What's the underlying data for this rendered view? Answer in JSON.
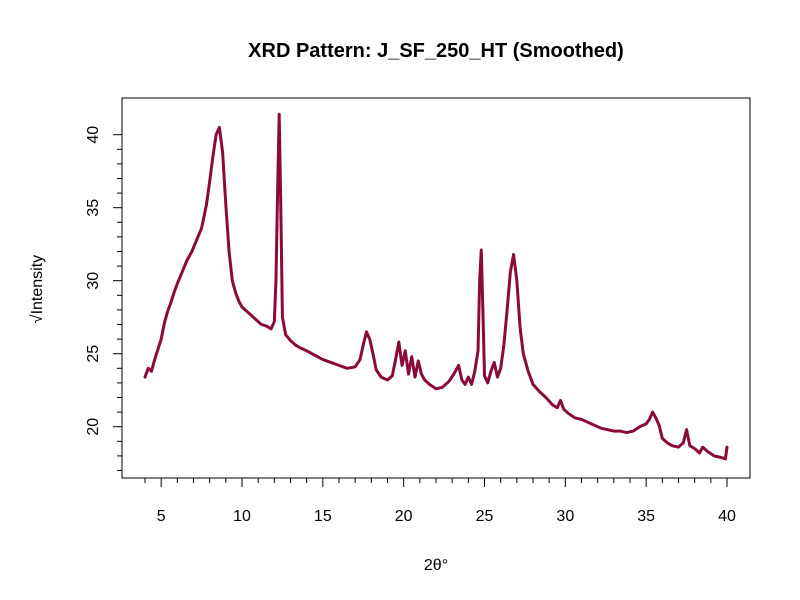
{
  "chart_data": {
    "type": "line",
    "title": "XRD Pattern: J_SF_250_HT (Smoothed)",
    "xlabel": "2θ°",
    "ylabel": "√Intensity",
    "xlim": [
      4,
      40
    ],
    "ylim": [
      17.4,
      41.6
    ],
    "x_ticks": [
      5,
      10,
      15,
      20,
      25,
      30,
      35,
      40
    ],
    "y_ticks": [
      20,
      25,
      30,
      35,
      40
    ],
    "x_tick_labels": [
      "5",
      "10",
      "15",
      "20",
      "25",
      "30",
      "35",
      "40"
    ],
    "y_tick_labels": [
      "20",
      "25",
      "30",
      "35",
      "40"
    ],
    "grid": false,
    "legend": "none",
    "line_color": "#8B0A3C",
    "series": [
      {
        "x": [
          4.0,
          4.2,
          4.4,
          4.6,
          4.8,
          5.0,
          5.2,
          5.4,
          5.6,
          5.8,
          6.0,
          6.3,
          6.6,
          6.9,
          7.2,
          7.5,
          7.8,
          8.0,
          8.2,
          8.4,
          8.6,
          8.8,
          9.0,
          9.2,
          9.4,
          9.6,
          9.8,
          10.0,
          10.3,
          10.6,
          10.9,
          11.2,
          11.5,
          11.8,
          12.0,
          12.1,
          12.2,
          12.3,
          12.4,
          12.5,
          12.7,
          13.0,
          13.3,
          13.6,
          14.0,
          14.5,
          15.0,
          15.5,
          16.0,
          16.5,
          17.0,
          17.3,
          17.5,
          17.7,
          17.9,
          18.1,
          18.3,
          18.6,
          19.0,
          19.3,
          19.5,
          19.7,
          19.9,
          20.1,
          20.3,
          20.5,
          20.7,
          20.9,
          21.1,
          21.3,
          21.6,
          22.0,
          22.4,
          22.8,
          23.1,
          23.4,
          23.6,
          23.8,
          24.0,
          24.2,
          24.4,
          24.6,
          24.7,
          24.8,
          24.9,
          25.0,
          25.2,
          25.4,
          25.6,
          25.8,
          26.0,
          26.2,
          26.4,
          26.6,
          26.8,
          27.0,
          27.2,
          27.4,
          27.7,
          28.0,
          28.4,
          28.8,
          29.2,
          29.5,
          29.7,
          29.9,
          30.2,
          30.6,
          31.0,
          31.4,
          31.8,
          32.2,
          32.6,
          33.0,
          33.4,
          33.8,
          34.2,
          34.6,
          35.0,
          35.2,
          35.4,
          35.6,
          35.8,
          36.0,
          36.3,
          36.6,
          37.0,
          37.3,
          37.5,
          37.7,
          38.0,
          38.3,
          38.5,
          38.8,
          39.2,
          39.6,
          39.9,
          40.0
        ],
        "y": [
          23.4,
          24.0,
          23.8,
          24.6,
          25.3,
          26.0,
          27.1,
          27.9,
          28.5,
          29.2,
          29.8,
          30.6,
          31.4,
          32.0,
          32.8,
          33.6,
          35.2,
          36.8,
          38.5,
          40.0,
          40.5,
          38.8,
          35.2,
          32.0,
          30.0,
          29.2,
          28.6,
          28.2,
          27.9,
          27.6,
          27.3,
          27.0,
          26.9,
          26.7,
          27.2,
          30.0,
          36.0,
          41.4,
          35.0,
          27.5,
          26.3,
          25.9,
          25.6,
          25.4,
          25.2,
          24.9,
          24.6,
          24.4,
          24.2,
          24.0,
          24.1,
          24.6,
          25.6,
          26.5,
          26.0,
          25.0,
          23.9,
          23.4,
          23.2,
          23.5,
          24.6,
          25.8,
          24.2,
          25.2,
          23.6,
          24.8,
          23.4,
          24.5,
          23.6,
          23.2,
          22.9,
          22.6,
          22.7,
          23.1,
          23.6,
          24.2,
          23.2,
          22.9,
          23.4,
          22.9,
          23.8,
          25.2,
          30.0,
          32.1,
          28.0,
          23.5,
          23.0,
          23.8,
          24.4,
          23.4,
          24.0,
          25.6,
          28.0,
          30.6,
          31.8,
          30.0,
          26.8,
          25.0,
          23.8,
          22.9,
          22.4,
          22.0,
          21.5,
          21.3,
          21.8,
          21.2,
          20.9,
          20.6,
          20.5,
          20.3,
          20.1,
          19.9,
          19.8,
          19.7,
          19.7,
          19.6,
          19.7,
          20.0,
          20.2,
          20.5,
          21.0,
          20.6,
          20.1,
          19.2,
          18.9,
          18.7,
          18.6,
          18.9,
          19.8,
          18.7,
          18.5,
          18.2,
          18.6,
          18.3,
          18.0,
          17.9,
          17.8,
          18.6
        ]
      }
    ]
  }
}
